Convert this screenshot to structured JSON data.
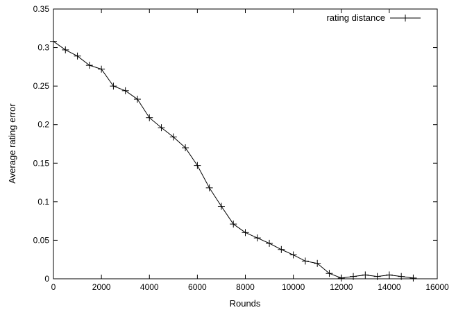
{
  "chart_data": {
    "type": "line",
    "title": "",
    "xlabel": "Rounds",
    "ylabel": "Average rating error",
    "xlim": [
      0,
      16000
    ],
    "ylim": [
      0,
      0.35
    ],
    "xticks": [
      0,
      2000,
      4000,
      6000,
      8000,
      10000,
      12000,
      14000,
      16000
    ],
    "xtick_labels": [
      "0",
      "2000",
      "4000",
      "6000",
      "8000",
      "10000",
      "12000",
      "14000",
      "16000"
    ],
    "yticks": [
      0,
      0.05,
      0.1,
      0.15,
      0.2,
      0.25,
      0.3,
      0.35
    ],
    "ytick_labels": [
      "0",
      "0.05",
      "0.1",
      "0.15",
      "0.2",
      "0.25",
      "0.3",
      "0.35"
    ],
    "grid": false,
    "legend": "top-right",
    "series": [
      {
        "name": "rating distance",
        "marker": "plus",
        "color": "#000000",
        "x": [
          0,
          500,
          1000,
          1500,
          2000,
          2500,
          3000,
          3500,
          4000,
          4500,
          5000,
          5500,
          6000,
          6500,
          7000,
          7500,
          8000,
          8500,
          9000,
          9500,
          10000,
          10500,
          11000,
          11500,
          12000,
          12500,
          13000,
          13500,
          14000,
          14500,
          15000
        ],
        "y": [
          0.308,
          0.297,
          0.289,
          0.277,
          0.272,
          0.25,
          0.244,
          0.233,
          0.209,
          0.196,
          0.184,
          0.17,
          0.147,
          0.118,
          0.094,
          0.071,
          0.06,
          0.053,
          0.046,
          0.038,
          0.031,
          0.023,
          0.02,
          0.007,
          0.001,
          0.003,
          0.005,
          0.003,
          0.005,
          0.003,
          0.001
        ]
      }
    ]
  }
}
